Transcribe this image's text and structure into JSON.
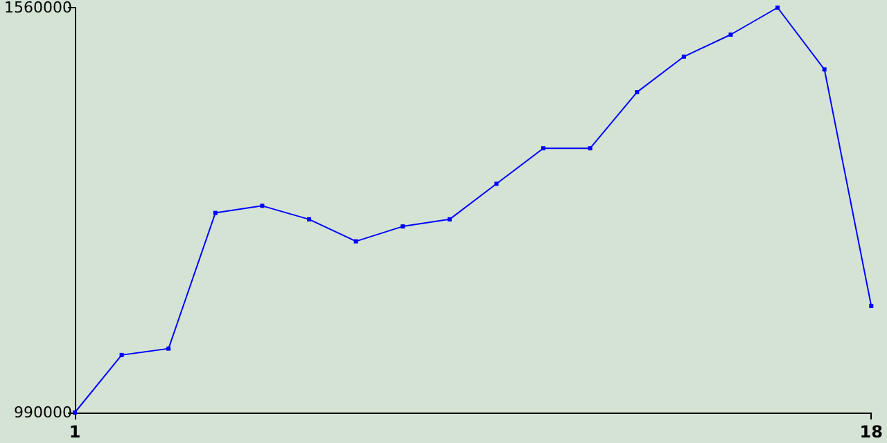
{
  "chart_data": {
    "type": "line",
    "x": [
      1,
      2,
      3,
      4,
      5,
      6,
      7,
      8,
      9,
      10,
      11,
      12,
      13,
      14,
      15,
      16,
      17,
      18
    ],
    "series": [
      {
        "color": "#0000ff",
        "values": [
          990000,
          1071000,
          1080000,
          1271000,
          1281000,
          1262000,
          1231000,
          1252000,
          1262000,
          1312000,
          1362000,
          1362000,
          1441000,
          1491000,
          1522000,
          1560000,
          1473000,
          1140000
        ]
      }
    ],
    "xlim": [
      1,
      18
    ],
    "xticks": [
      1,
      18
    ],
    "ylim": [
      990000,
      1560000
    ],
    "yticks": [
      990000,
      1560000
    ],
    "grid": false,
    "marker": "square",
    "line_style": "solid"
  }
}
